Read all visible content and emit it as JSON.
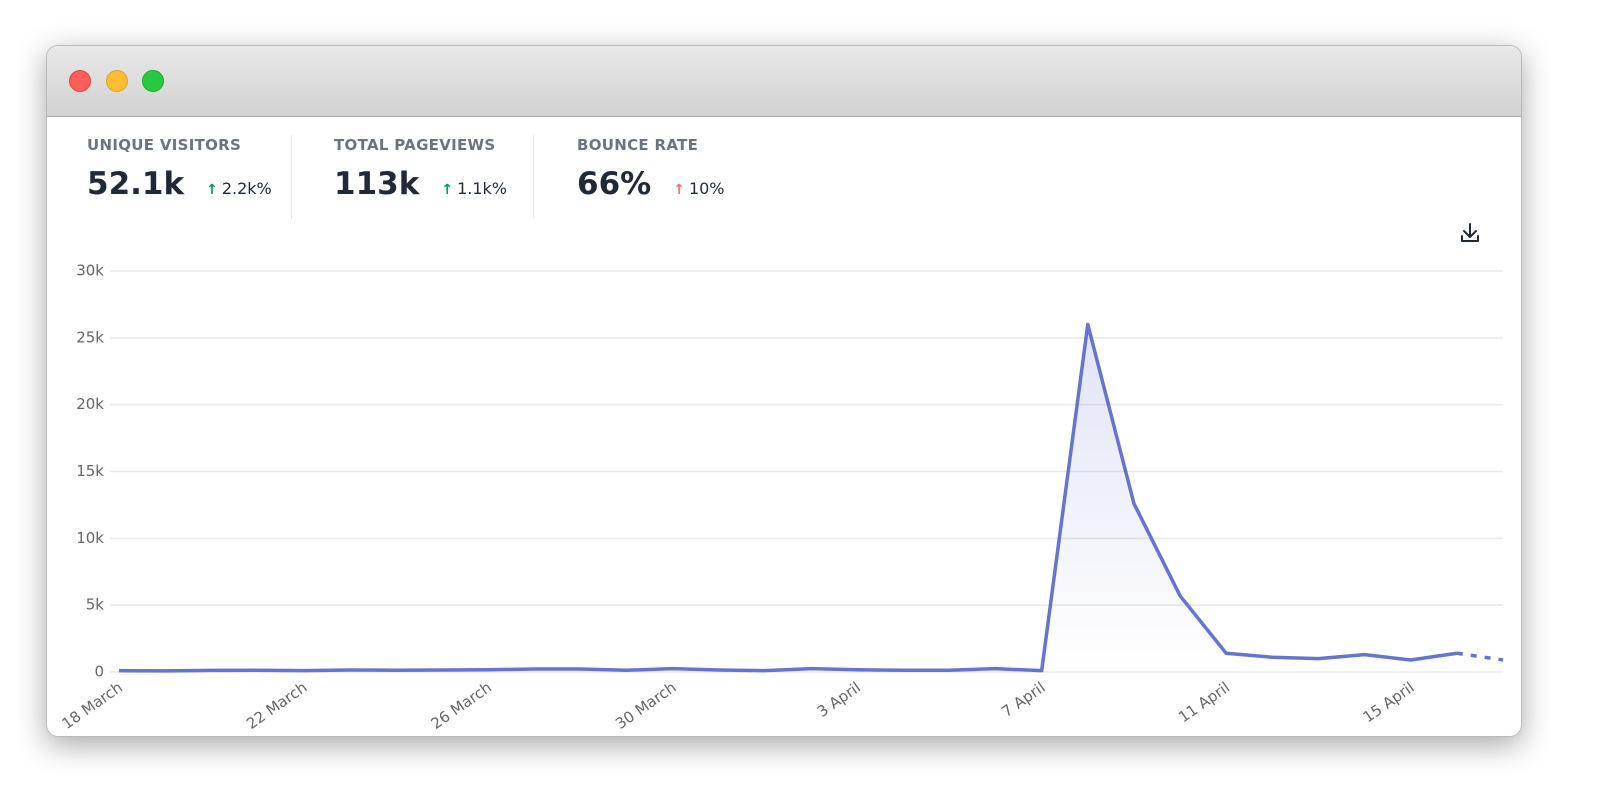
{
  "stats": [
    {
      "label": "UNIQUE VISITORS",
      "value": "52.1k",
      "change": "2.2k%",
      "change_color": "#059669"
    },
    {
      "label": "TOTAL PAGEVIEWS",
      "value": "113k",
      "change": "1.1k%",
      "change_color": "#059669"
    },
    {
      "label": "BOUNCE RATE",
      "value": "66%",
      "change": "10%",
      "change_color": "#f87171"
    }
  ],
  "chart_data": {
    "type": "line",
    "categories": [
      "18 March",
      null,
      null,
      null,
      "22 March",
      null,
      null,
      null,
      "26 March",
      null,
      null,
      null,
      "30 March",
      null,
      null,
      null,
      "3 April",
      null,
      null,
      null,
      "7 April",
      null,
      null,
      null,
      "11 April",
      null,
      null,
      null,
      "15 April",
      null,
      null
    ],
    "series": [
      {
        "color": "#6574cd",
        "values": [
          100,
          80,
          120,
          130,
          100,
          150,
          130,
          150,
          170,
          220,
          220,
          130,
          250,
          150,
          100,
          250,
          170,
          130,
          130,
          250,
          100,
          26000,
          12600,
          5700,
          1400,
          1100,
          1000,
          1300,
          900,
          1400,
          900
        ]
      }
    ],
    "dashed_last_segment": true,
    "ylim": [
      0,
      30000
    ],
    "yticks": [
      0,
      {
        "value": 5000,
        "label": "5k"
      },
      {
        "value": 10000,
        "label": "10k"
      },
      {
        "value": 15000,
        "label": "15k"
      },
      {
        "value": 20000,
        "label": "20k"
      },
      {
        "value": 25000,
        "label": "25k"
      },
      {
        "value": 30000,
        "label": "30k"
      }
    ],
    "grid": true
  }
}
